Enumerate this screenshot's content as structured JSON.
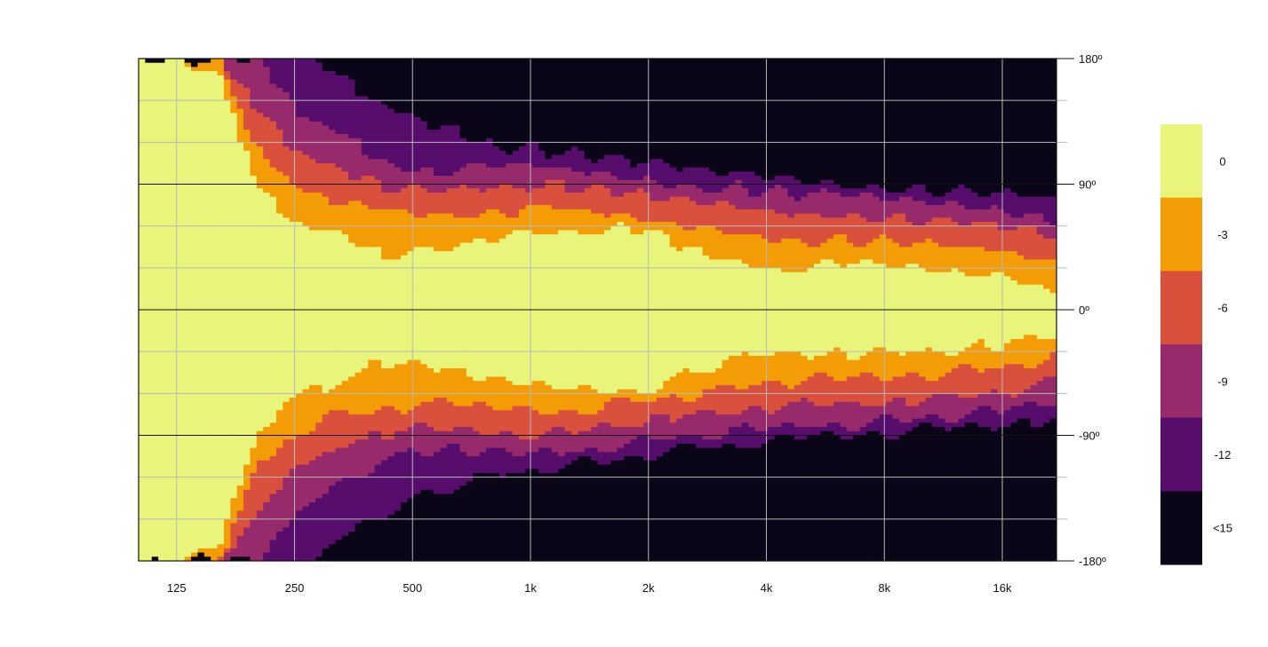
{
  "chart_data": {
    "type": "heatmap",
    "title": "",
    "xlabel": "",
    "ylabel": "",
    "x_scale": "log2",
    "x_ticks": [
      {
        "value": 125,
        "label": "125"
      },
      {
        "value": 250,
        "label": "250"
      },
      {
        "value": 500,
        "label": "500"
      },
      {
        "value": 1000,
        "label": "1k"
      },
      {
        "value": 2000,
        "label": "2k"
      },
      {
        "value": 4000,
        "label": "4k"
      },
      {
        "value": 8000,
        "label": "8k"
      },
      {
        "value": 16000,
        "label": "16k"
      }
    ],
    "xlim": [
      100,
      22000
    ],
    "y_ticks": [
      {
        "value": 180,
        "label": "180º"
      },
      {
        "value": 90,
        "label": "90º"
      },
      {
        "value": 0,
        "label": "0º"
      },
      {
        "value": -90,
        "label": "-90º"
      },
      {
        "value": -180,
        "label": "-180º"
      }
    ],
    "ylim": [
      -180,
      180
    ],
    "y_minor_step": 30,
    "grid": true,
    "legend_position": "right",
    "colorbar": [
      {
        "label": "0",
        "color": "#e8f47a"
      },
      {
        "label": "-3",
        "color": "#f39c05"
      },
      {
        "label": "-6",
        "color": "#d9503c"
      },
      {
        "label": "-9",
        "color": "#962a6a"
      },
      {
        "label": "-12",
        "color": "#570d6b"
      },
      {
        "label": "<15",
        "color": "#0b0518"
      }
    ],
    "contours_deg": {
      "freq": [
        100,
        125,
        160,
        200,
        250,
        315,
        400,
        500,
        630,
        800,
        1000,
        1250,
        1600,
        2000,
        2500,
        3150,
        4000,
        5000,
        6300,
        8000,
        10000,
        12500,
        16000,
        20000,
        22000
      ],
      "minus3": [
        180,
        180,
        170,
        90,
        60,
        55,
        40,
        40,
        45,
        52,
        55,
        57,
        57,
        57,
        45,
        38,
        30,
        30,
        32,
        32,
        30,
        28,
        26,
        18,
        14
      ],
      "minus6": [
        180,
        180,
        180,
        115,
        90,
        75,
        72,
        68,
        68,
        70,
        72,
        72,
        68,
        65,
        60,
        58,
        52,
        50,
        50,
        48,
        46,
        44,
        42,
        36,
        32
      ],
      "minus9": [
        180,
        180,
        180,
        145,
        115,
        100,
        90,
        85,
        85,
        88,
        90,
        88,
        84,
        80,
        76,
        74,
        70,
        68,
        68,
        66,
        64,
        62,
        58,
        54,
        50
      ],
      "minus12": [
        180,
        180,
        180,
        180,
        145,
        128,
        110,
        100,
        100,
        102,
        104,
        102,
        98,
        94,
        90,
        88,
        85,
        82,
        82,
        80,
        78,
        76,
        72,
        68,
        64
      ],
      "minus15": [
        180,
        180,
        180,
        180,
        180,
        170,
        150,
        135,
        128,
        118,
        115,
        112,
        108,
        104,
        100,
        98,
        95,
        92,
        90,
        88,
        86,
        84,
        82,
        80,
        78
      ]
    }
  }
}
